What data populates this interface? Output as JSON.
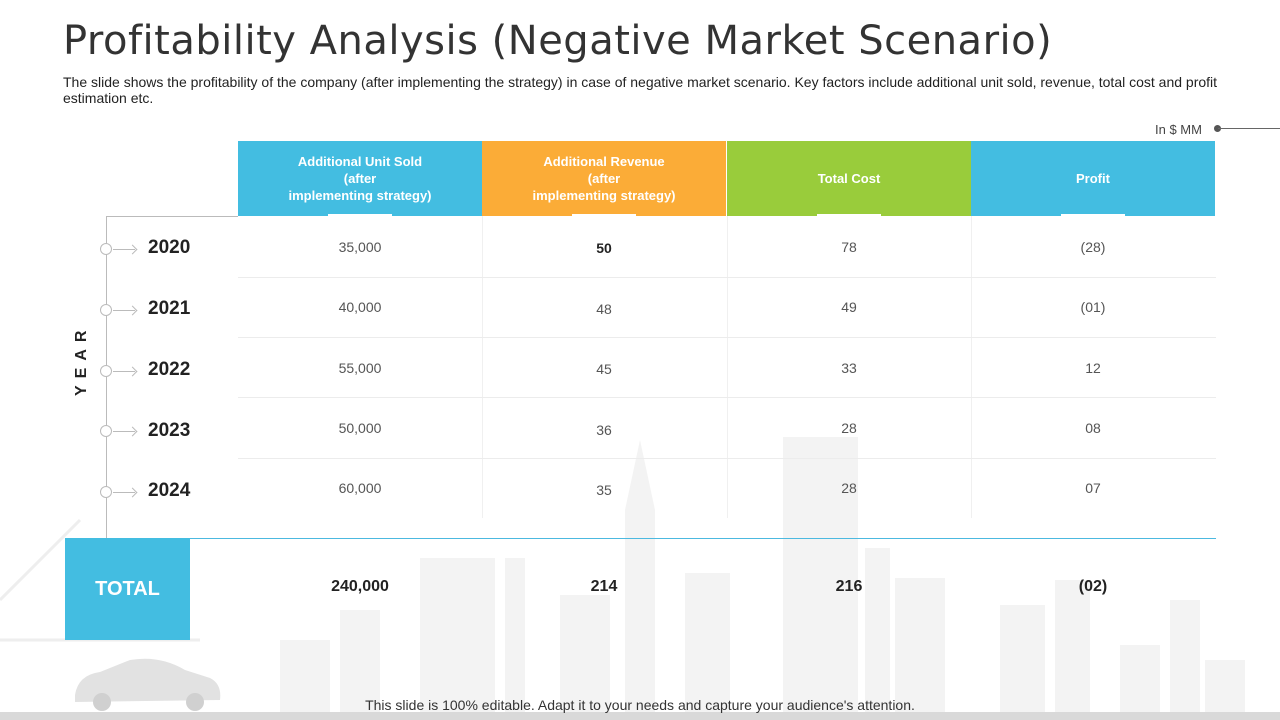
{
  "title": "Profitability Analysis (Negative Market Scenario)",
  "subtitle": "The slide shows the profitability of the company (after implementing the strategy) in case of negative market scenario. Key factors include additional unit sold, revenue, total cost and profit estimation etc.",
  "unit_note": "In $ MM",
  "axis_label": "YEAR",
  "colors": {
    "col1": "#43bde1",
    "col2": "#fbac37",
    "col3": "#99cc3b",
    "col4": "#43bde1"
  },
  "headers": [
    "Additional Unit Sold\n(after\nimplementing strategy)",
    "Additional Revenue\n(after\nimplementing strategy)",
    "Total Cost",
    "Profit"
  ],
  "rows": [
    {
      "year": "2020",
      "units": "35,000",
      "revenue": "50",
      "cost": "78",
      "profit": "(28)"
    },
    {
      "year": "2021",
      "units": "40,000",
      "revenue": "48",
      "cost": "49",
      "profit": "(01)"
    },
    {
      "year": "2022",
      "units": "55,000",
      "revenue": "45",
      "cost": "33",
      "profit": "12"
    },
    {
      "year": "2023",
      "units": "50,000",
      "revenue": "36",
      "cost": "28",
      "profit": "08"
    },
    {
      "year": "2024",
      "units": "60,000",
      "revenue": "35",
      "cost": "28",
      "profit": "07"
    }
  ],
  "total": {
    "label": "TOTAL",
    "units": "240,000",
    "revenue": "214",
    "cost": "216",
    "profit": "(02)"
  },
  "footer": "This slide is 100% editable. Adapt it to your needs and capture your audience's attention."
}
